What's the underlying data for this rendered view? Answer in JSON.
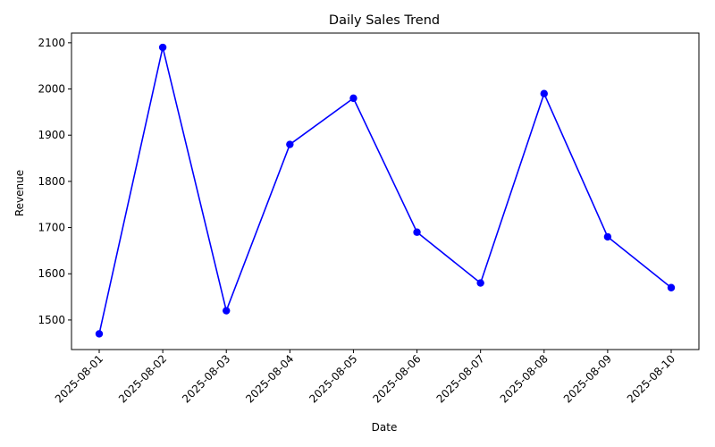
{
  "chart_data": {
    "type": "line",
    "title": "Daily Sales Trend",
    "xlabel": "Date",
    "ylabel": "Revenue",
    "categories": [
      "2025-08-01",
      "2025-08-02",
      "2025-08-03",
      "2025-08-04",
      "2025-08-05",
      "2025-08-06",
      "2025-08-07",
      "2025-08-08",
      "2025-08-09",
      "2025-08-10"
    ],
    "series": [
      {
        "values": [
          1470,
          2090,
          1520,
          1880,
          1980,
          1690,
          1580,
          1990,
          1680,
          1570
        ],
        "color": "#0000ff",
        "marker": "circle"
      }
    ],
    "ylim": [
      1436,
      2121
    ],
    "yticks": [
      1500,
      1600,
      1700,
      1800,
      1900,
      2000,
      2100
    ],
    "grid": false,
    "legend": "none"
  }
}
